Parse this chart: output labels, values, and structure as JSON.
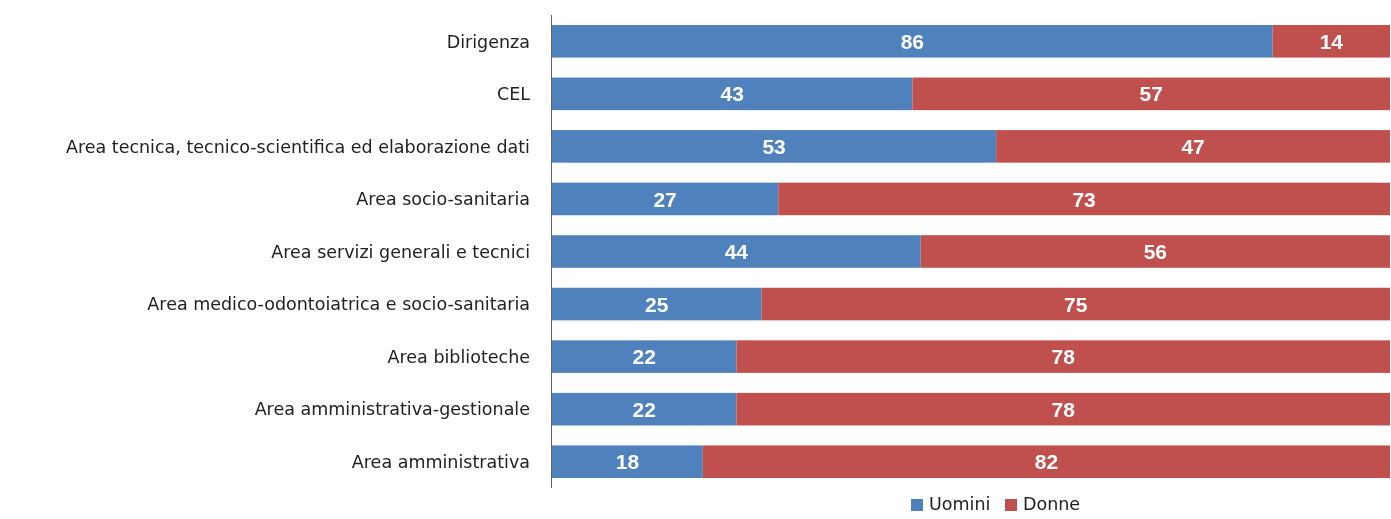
{
  "chart_data": {
    "type": "bar",
    "orientation": "horizontal",
    "stacked": true,
    "categories": [
      "Dirigenza",
      "CEL",
      "Area tecnica, tecnico-scientifica ed elaborazione dati",
      "Area socio-sanitaria",
      "Area servizi generali e tecnici",
      "Area medico-odontoiatrica e socio-sanitaria",
      "Area biblioteche",
      "Area amministrativa-gestionale",
      "Area amministrativa"
    ],
    "series": [
      {
        "name": "Uomini",
        "color": "#4f81bd",
        "values": [
          86,
          43,
          53,
          27,
          44,
          25,
          22,
          22,
          18
        ]
      },
      {
        "name": "Donne",
        "color": "#c0504d",
        "values": [
          14,
          57,
          47,
          73,
          56,
          75,
          78,
          78,
          82
        ]
      }
    ],
    "xlim": [
      0,
      100
    ],
    "tick_labels": "y",
    "data_labels": true,
    "legend": "bottom"
  }
}
